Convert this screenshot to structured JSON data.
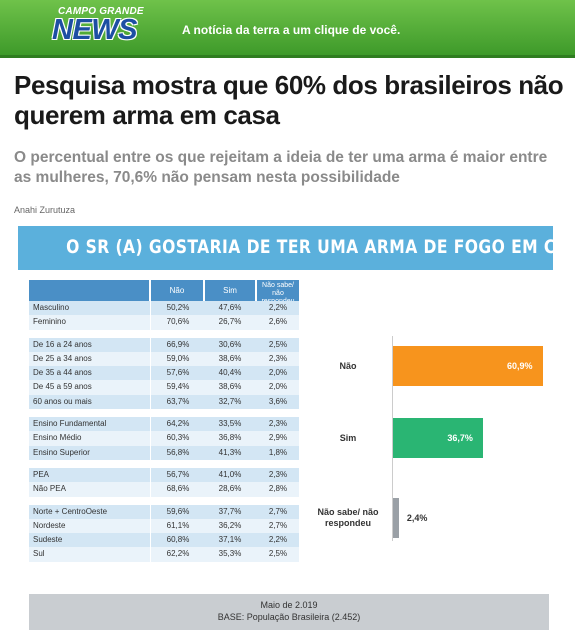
{
  "header": {
    "logo_top": "CAMPO GRANDE",
    "logo_main": "NEWS",
    "tagline": "A notícia da terra a um clique de você."
  },
  "article": {
    "headline": "Pesquisa mostra que 60% dos brasileiros não querem arma em casa",
    "subhead": "O percentual entre os que rejeitam a ideia de ter uma arma é maior entre as mulheres, 70,6% não pensam nesta possibilidade",
    "author": "Anahi Zurutuza"
  },
  "infographic": {
    "title": "O SR (A) GOSTARIA DE TER UMA ARMA DE FOGO EM CASA?",
    "columns": [
      "Não",
      "Sim",
      "Não sabe/ não respondeu"
    ],
    "groups": [
      [
        {
          "label": "Masculino",
          "v": [
            "50,2%",
            "47,6%",
            "2,2%"
          ]
        },
        {
          "label": "Feminino",
          "v": [
            "70,6%",
            "26,7%",
            "2,6%"
          ]
        }
      ],
      [
        {
          "label": "De 16 a 24 anos",
          "v": [
            "66,9%",
            "30,6%",
            "2,5%"
          ]
        },
        {
          "label": "De 25 a 34 anos",
          "v": [
            "59,0%",
            "38,6%",
            "2,3%"
          ]
        },
        {
          "label": "De 35 a 44 anos",
          "v": [
            "57,6%",
            "40,4%",
            "2,0%"
          ]
        },
        {
          "label": "De 45 a 59 anos",
          "v": [
            "59,4%",
            "38,6%",
            "2,0%"
          ]
        },
        {
          "label": "60 anos ou mais",
          "v": [
            "63,7%",
            "32,7%",
            "3,6%"
          ]
        }
      ],
      [
        {
          "label": "Ensino Fundamental",
          "v": [
            "64,2%",
            "33,5%",
            "2,3%"
          ]
        },
        {
          "label": "Ensino Médio",
          "v": [
            "60,3%",
            "36,8%",
            "2,9%"
          ]
        },
        {
          "label": "Ensino Superior",
          "v": [
            "56,8%",
            "41,3%",
            "1,8%"
          ]
        }
      ],
      [
        {
          "label": "PEA",
          "v": [
            "56,7%",
            "41,0%",
            "2,3%"
          ]
        },
        {
          "label": "Não PEA",
          "v": [
            "68,6%",
            "28,6%",
            "2,8%"
          ]
        }
      ],
      [
        {
          "label": "Norte + CentroOeste",
          "v": [
            "59,6%",
            "37,7%",
            "2,7%"
          ]
        },
        {
          "label": "Nordeste",
          "v": [
            "61,1%",
            "36,2%",
            "2,7%"
          ]
        },
        {
          "label": "Sudeste",
          "v": [
            "60,8%",
            "37,1%",
            "2,2%"
          ]
        },
        {
          "label": "Sul",
          "v": [
            "62,2%",
            "35,3%",
            "2,5%"
          ]
        }
      ]
    ],
    "footer_date": "Maio de 2.019",
    "footer_base": "BASE: População Brasileira (2.452)"
  },
  "chart_data": {
    "type": "bar",
    "orientation": "horizontal",
    "categories": [
      "Não",
      "Sim",
      "Não sabe/ não respondeu"
    ],
    "values": [
      60.9,
      36.7,
      2.4
    ],
    "value_labels": [
      "60,9%",
      "36,7%",
      "2,4%"
    ],
    "colors": [
      "#f7941d",
      "#2ab573",
      "#9aa0a6"
    ],
    "xlim": [
      0,
      60.9
    ]
  }
}
